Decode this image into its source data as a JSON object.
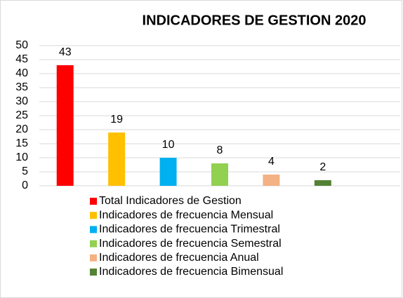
{
  "chart_data": {
    "type": "bar",
    "title": "INDICADORES DE GESTION 2020",
    "series": [
      {
        "name": "Total Indicadores de Gestion",
        "color": "#ff0000",
        "values": [
          43
        ]
      },
      {
        "name": "Indicadores de frecuencia Mensual",
        "color": "#ffc000",
        "values": [
          19
        ]
      },
      {
        "name": "Indicadores de frecuencia Trimestral",
        "color": "#00b0f0",
        "values": [
          10
        ]
      },
      {
        "name": "Indicadores de frecuencia Semestral",
        "color": "#92d050",
        "values": [
          8
        ]
      },
      {
        "name": "Indicadores de frecuencia Anual",
        "color": "#f4b183",
        "values": [
          4
        ]
      },
      {
        "name": "Indicadores de frecuencia Bimensual",
        "color": "#548235",
        "values": [
          2
        ]
      }
    ],
    "ylim": [
      0,
      50
    ],
    "yticks": [
      0,
      5,
      10,
      15,
      20,
      25,
      30,
      35,
      40,
      45,
      50
    ],
    "grid": true,
    "legend": "bottom"
  }
}
